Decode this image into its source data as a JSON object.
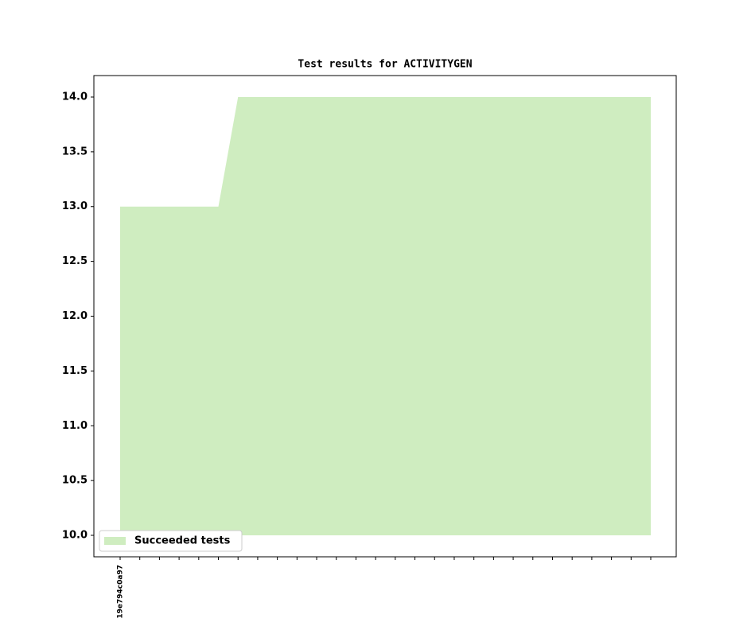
{
  "chart_data": {
    "type": "area",
    "title": "Test results for ACTIVITYGEN",
    "categories": [
      "19e794c0a97",
      null,
      null,
      null,
      null,
      null,
      null,
      null,
      null,
      null,
      null,
      null,
      null,
      null,
      null,
      null,
      null,
      null,
      null,
      null,
      null,
      null,
      null,
      null,
      null,
      null,
      null,
      null
    ],
    "series": [
      {
        "name": "Succeeded tests",
        "color": "#cfedc0",
        "values": [
          13,
          13,
          13,
          13,
          13,
          13,
          14,
          14,
          14,
          14,
          14,
          14,
          14,
          14,
          14,
          14,
          14,
          14,
          14,
          14,
          14,
          14,
          14,
          14,
          14,
          14,
          14,
          14
        ]
      }
    ],
    "ylim": [
      9.804,
      14.196
    ],
    "yticks": [
      {
        "value": 10,
        "label": "10.0"
      },
      10.5,
      11,
      11.5,
      12,
      12.5,
      13,
      13.5,
      14
    ],
    "ytick_labels": [
      "10.0",
      "10.5",
      "11.0",
      "11.5",
      "12.0",
      "12.5",
      "13.0",
      "13.5",
      "14.0"
    ],
    "legend": "lower left",
    "grid": false
  }
}
